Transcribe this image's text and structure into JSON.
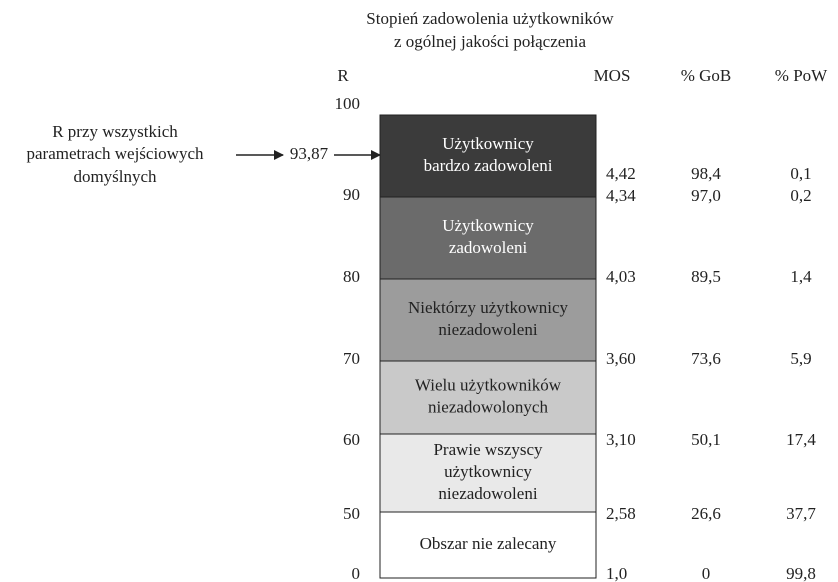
{
  "title": [
    "Stopień zadowolenia użytkowników",
    "z ogólnej jakości połączenia"
  ],
  "headers": [
    "R",
    "MOS",
    "% GoB",
    "% PoW"
  ],
  "annotation": {
    "lines": [
      "R przy wszystkich",
      "parametrach wejściowych",
      "domyślnych"
    ],
    "value": "93,87"
  },
  "r_labels": [
    "100",
    "90",
    "80",
    "70",
    "60",
    "50",
    "0"
  ],
  "bands": [
    {
      "label": [
        "Użytkownicy",
        "bardzo zadowoleni"
      ]
    },
    {
      "label": [
        "Użytkownicy",
        "zadowoleni"
      ]
    },
    {
      "label": [
        "Niektórzy użytkownicy",
        "niezadowoleni"
      ]
    },
    {
      "label": [
        "Wielu użytkowników",
        "niezadowolonych"
      ]
    },
    {
      "label": [
        "Prawie wszyscy",
        "użytkownicy",
        "niezadowoleni"
      ]
    },
    {
      "label": [
        "Obszar nie zalecany"
      ]
    }
  ],
  "rows": [
    [
      "4,42",
      "98,4",
      "0,1"
    ],
    [
      "4,34",
      "97,0",
      "0,2"
    ],
    [
      "4,03",
      "89,5",
      "1,4"
    ],
    [
      "3,60",
      "73,6",
      "5,9"
    ],
    [
      "3,10",
      "50,1",
      "17,4"
    ],
    [
      "2,58",
      "26,6",
      "37,7"
    ],
    [
      "1,0",
      "0",
      "99,8"
    ]
  ]
}
